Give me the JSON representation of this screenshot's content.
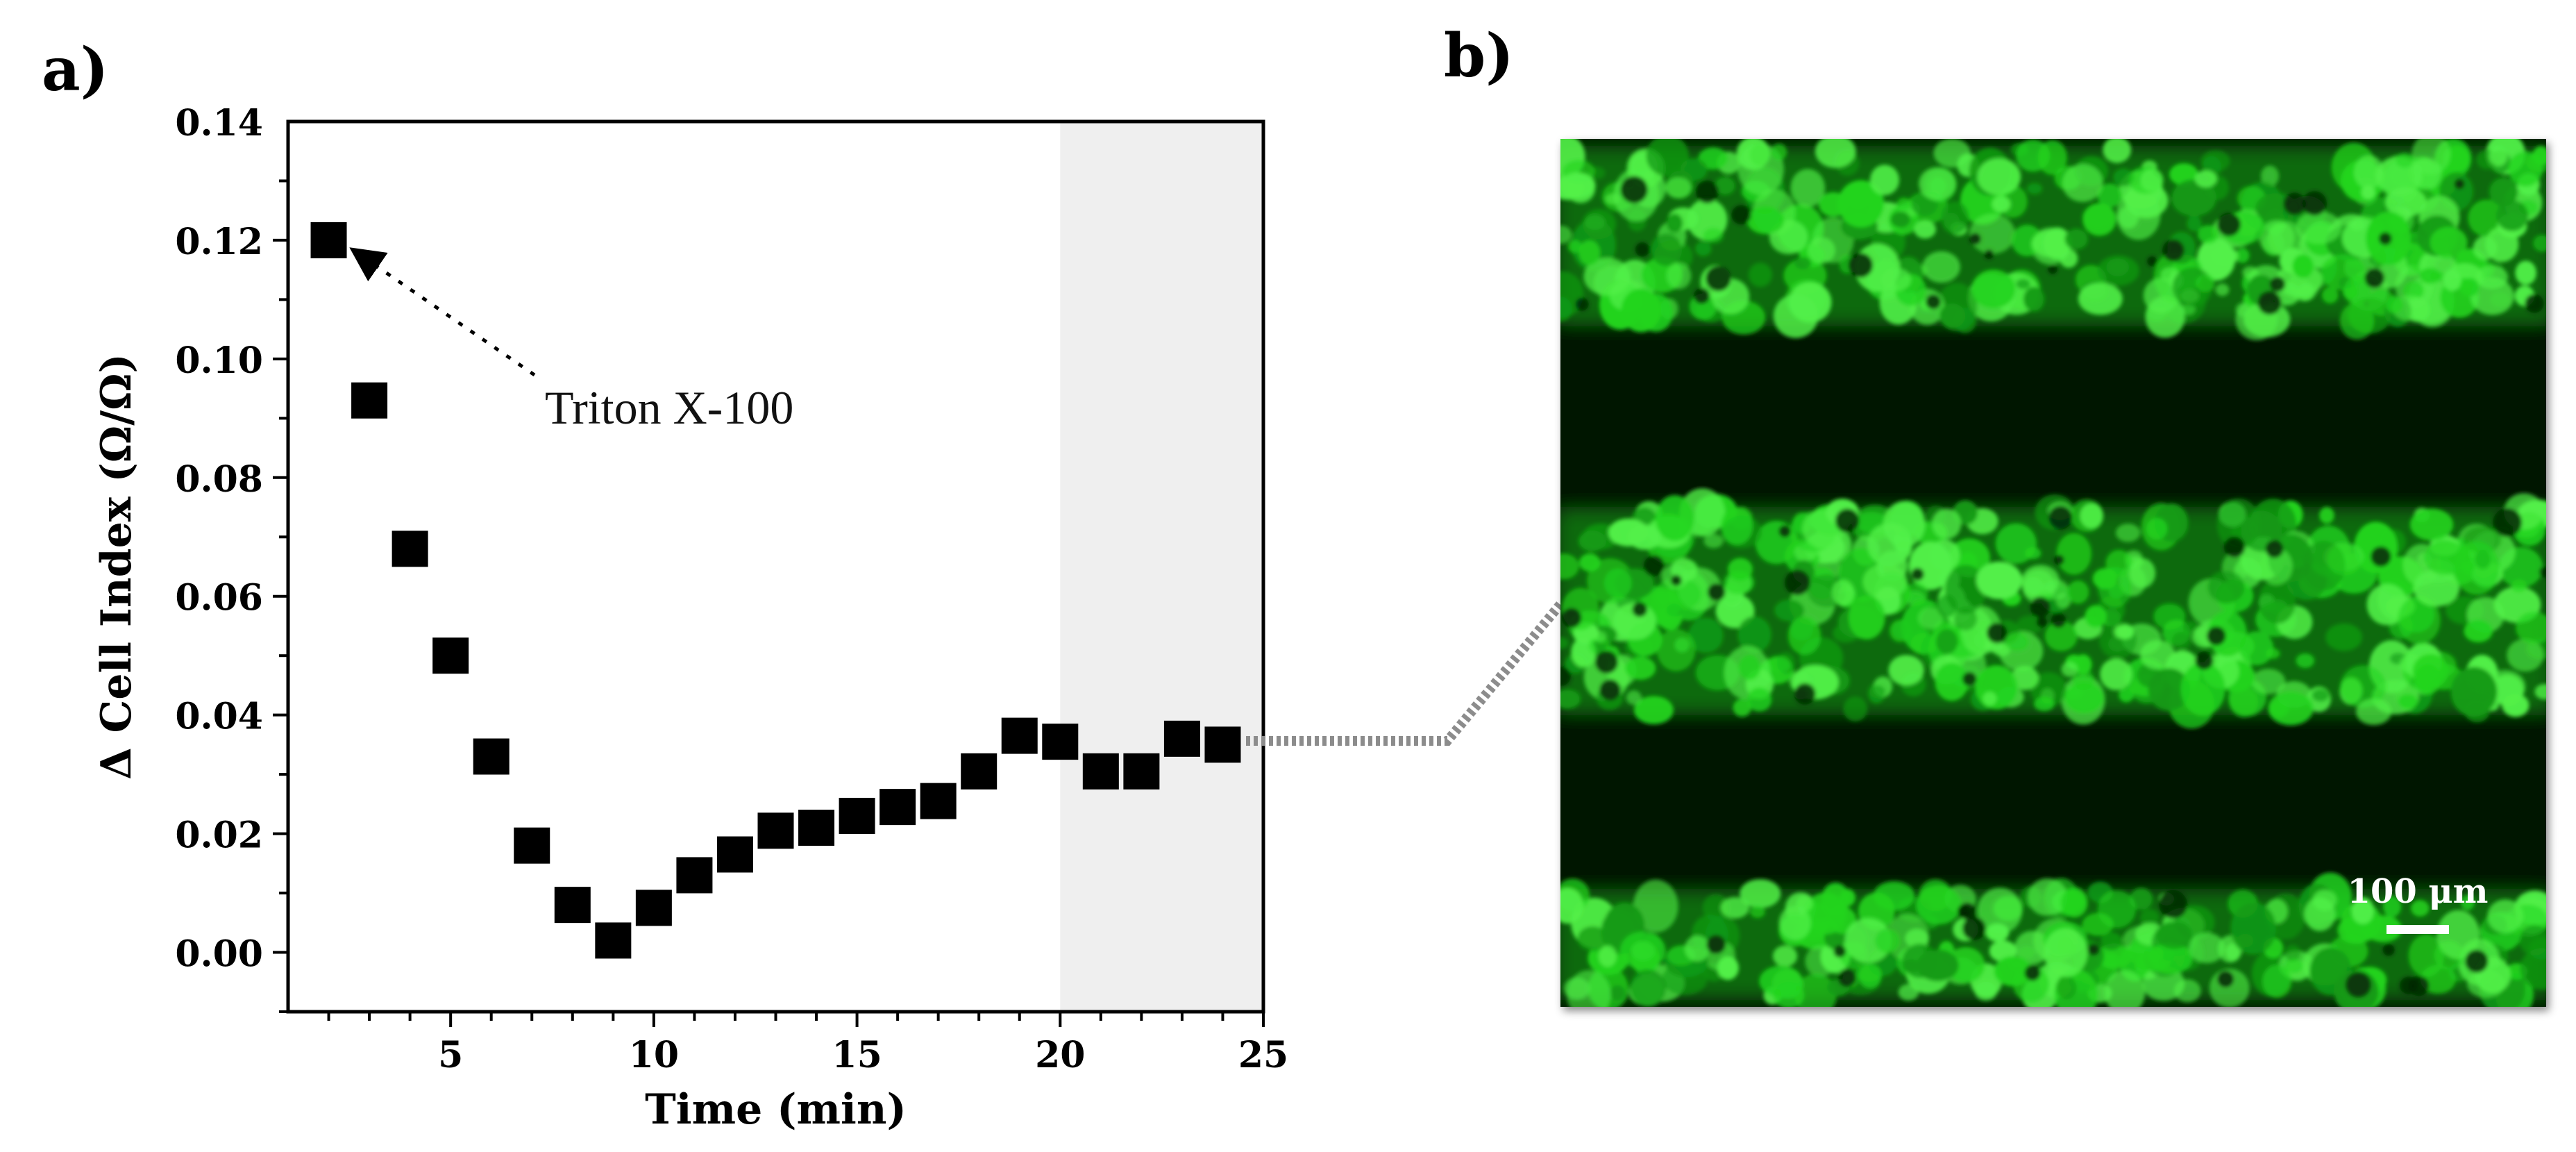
{
  "panels": {
    "a_label": "a)",
    "b_label": "b)"
  },
  "chart_data": {
    "type": "scatter",
    "title": "",
    "xlabel": "Time (min)",
    "ylabel": "Δ Cell Index (Ω/Ω)",
    "xlim": [
      1,
      25
    ],
    "ylim": [
      -0.01,
      0.14
    ],
    "xticks": [
      5,
      10,
      15,
      20,
      25
    ],
    "yticks": [
      0.0,
      0.02,
      0.04,
      0.06,
      0.08,
      0.1,
      0.12,
      0.14
    ],
    "ytick_labels": [
      "0.00",
      "0.02",
      "0.04",
      "0.06",
      "0.08",
      "0.10",
      "0.12",
      "0.14"
    ],
    "grid": false,
    "marker": "square",
    "marker_color": "#000000",
    "shaded_region": {
      "x_from": 20,
      "x_to": 25,
      "color": "#efefef"
    },
    "annotation": {
      "text": "Triton X-100",
      "points_to_x": 2
    },
    "series": [
      {
        "x": [
          2,
          3,
          4,
          5,
          6,
          7,
          8,
          9,
          10,
          11,
          12,
          13,
          14,
          15,
          16,
          17,
          18,
          19,
          20,
          21,
          22,
          23,
          24
        ],
        "values": [
          0.12,
          0.093,
          0.068,
          0.05,
          0.033,
          0.018,
          0.008,
          0.002,
          0.0075,
          0.013,
          0.0165,
          0.0205,
          0.021,
          0.023,
          0.0245,
          0.0255,
          0.0305,
          0.0365,
          0.0355,
          0.0305,
          0.0305,
          0.036,
          0.035
        ]
      }
    ]
  },
  "micrograph": {
    "scale_bar_label": "100 μm",
    "background_color": "#031403",
    "cell_color": "#22d41e"
  }
}
